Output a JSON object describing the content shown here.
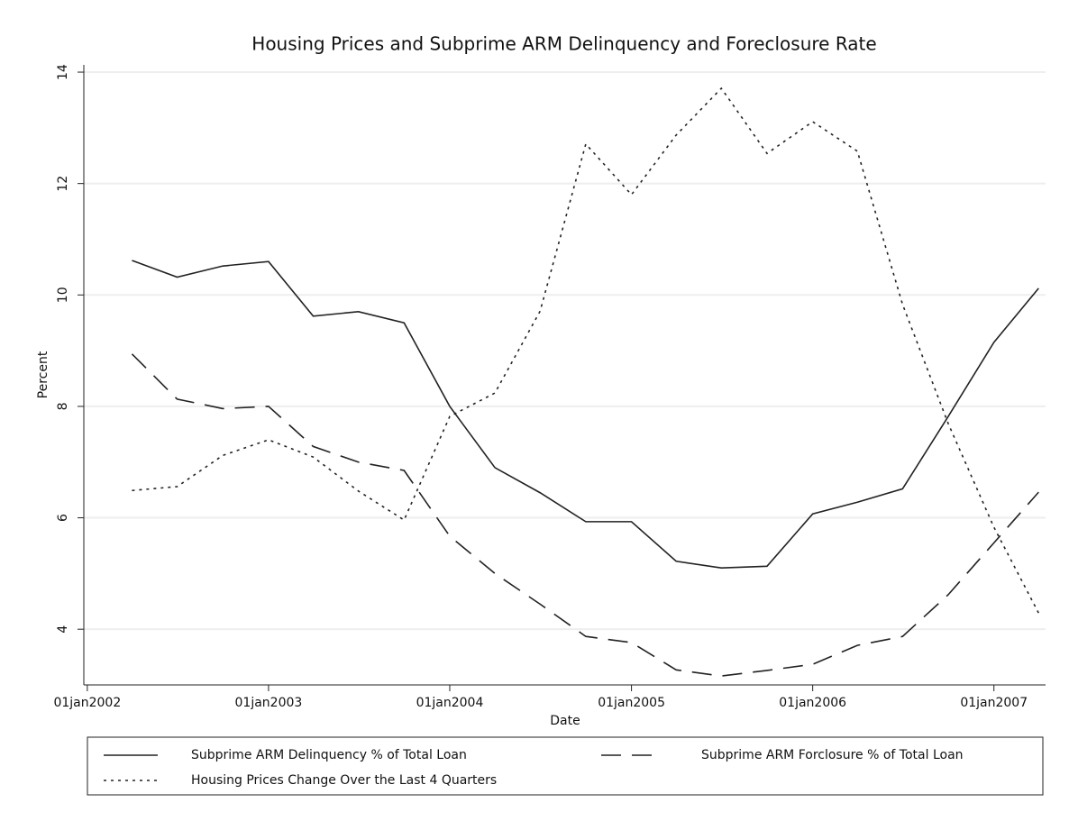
{
  "chart_data": {
    "type": "line",
    "title": "Housing Prices and Subprime ARM Delinquency and Foreclosure Rate",
    "xlabel": "Date",
    "ylabel": "Percent",
    "x": [
      "2002-04-01",
      "2002-07-01",
      "2002-10-01",
      "2003-01-01",
      "2003-04-01",
      "2003-07-01",
      "2003-10-01",
      "2004-01-01",
      "2004-04-01",
      "2004-07-01",
      "2004-10-01",
      "2005-01-01",
      "2005-04-01",
      "2005-07-01",
      "2005-10-01",
      "2006-01-01",
      "2006-04-01",
      "2006-07-01",
      "2006-10-01",
      "2007-01-01",
      "2007-04-01"
    ],
    "series": [
      {
        "name": "Subprime ARM Delinquency % of Total Loan",
        "color": "#222222",
        "style": "solid",
        "values": [
          10.62,
          10.32,
          10.52,
          10.6,
          9.62,
          9.7,
          9.5,
          8.0,
          6.9,
          6.45,
          5.93,
          5.93,
          5.22,
          5.1,
          5.13,
          6.07,
          6.28,
          6.52,
          7.82,
          9.15,
          10.12
        ]
      },
      {
        "name": "Subprime ARM Forclosure % of Total Loan",
        "color": "#222222",
        "style": "dashed",
        "values": [
          8.94,
          8.13,
          7.96,
          8.0,
          7.28,
          7.0,
          6.85,
          5.67,
          5.0,
          4.45,
          3.87,
          3.76,
          3.27,
          3.16,
          3.26,
          3.37,
          3.71,
          3.87,
          4.62,
          5.55,
          6.46
        ]
      },
      {
        "name": "Housing Prices Change Over the Last 4 Quarters",
        "color": "#222222",
        "style": "dotted",
        "values": [
          6.49,
          6.56,
          7.12,
          7.4,
          7.09,
          6.48,
          5.96,
          7.82,
          8.24,
          9.71,
          12.71,
          11.8,
          12.87,
          13.71,
          12.54,
          13.11,
          12.58,
          9.83,
          7.69,
          5.83,
          4.29
        ]
      }
    ],
    "xlim": [
      "2001-12-25",
      "2007-04-15"
    ],
    "xticks": [
      {
        "value": "2002-01-01",
        "label": "01jan2002"
      },
      {
        "value": "2003-01-01",
        "label": "01jan2003"
      },
      {
        "value": "2004-01-01",
        "label": "01jan2004"
      },
      {
        "value": "2005-01-01",
        "label": "01jan2005"
      },
      {
        "value": "2006-01-01",
        "label": "01jan2006"
      },
      {
        "value": "2007-01-01",
        "label": "01jan2007"
      }
    ],
    "ylim": [
      3.0,
      14.13
    ],
    "yticks": [
      4,
      6,
      8,
      10,
      12,
      14
    ],
    "grid": true,
    "legend": "bottom"
  }
}
